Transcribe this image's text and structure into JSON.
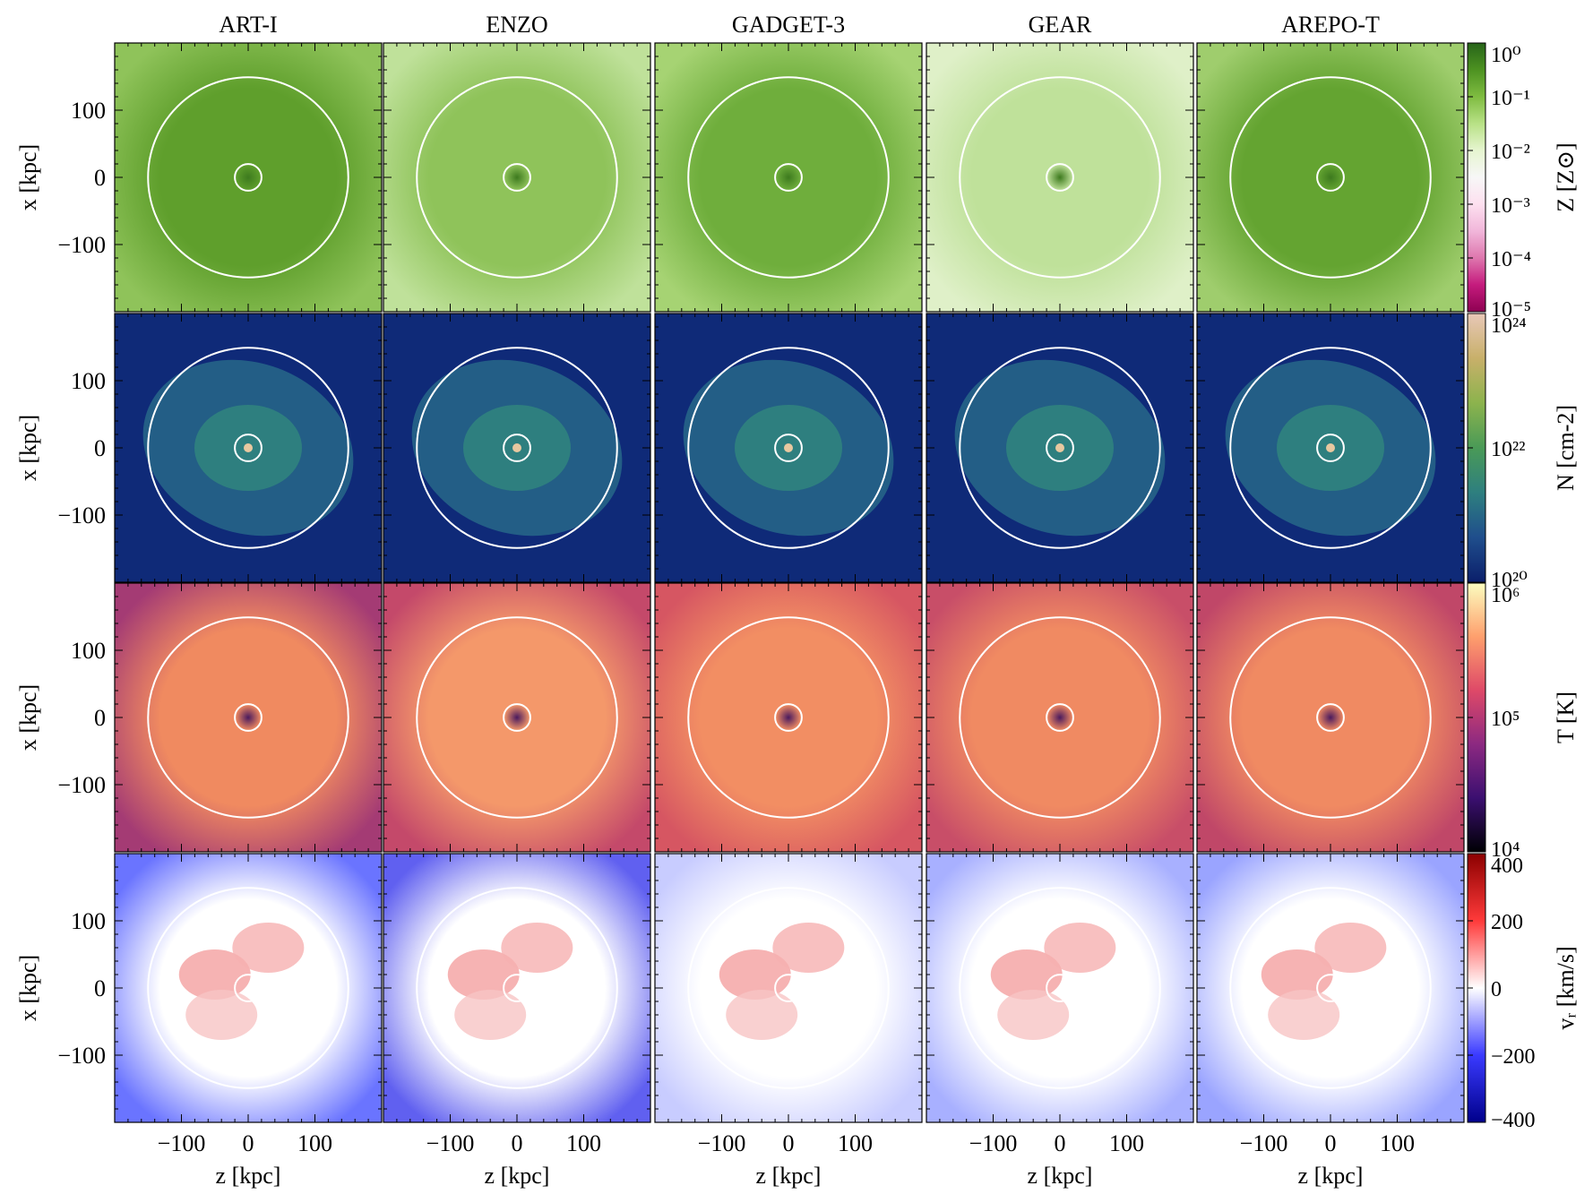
{
  "chart_data": {
    "type": "heatmap",
    "columns": [
      "ART-I",
      "ENZO",
      "GADGET-3",
      "GEAR",
      "AREPO-T"
    ],
    "xlabel": "z [kpc]",
    "ylabel": "x [kpc]",
    "xlim": [
      -200,
      200
    ],
    "ylim": [
      -200,
      200
    ],
    "xticks": [
      -100,
      0,
      100
    ],
    "yticks": [
      100,
      0,
      -100
    ],
    "xtick_labels": [
      "−100",
      "0",
      "100"
    ],
    "ytick_labels": [
      "100",
      "0",
      "−100"
    ],
    "circle_radii_kpc": [
      150,
      20
    ],
    "rows": [
      {
        "quantity": "metallicity",
        "colorbar_label": "Z [Z⊙]",
        "colorbar_scale": "log",
        "colorbar_ticks": [
          "10⁰",
          "10⁻¹",
          "10⁻²",
          "10⁻³",
          "10⁻⁴",
          "10⁻⁵"
        ],
        "colormap": [
          "#8e0152",
          "#c51b7d",
          "#de77ae",
          "#f1b6da",
          "#fde0ef",
          "#f7f7f7",
          "#e6f5d0",
          "#b8e186",
          "#7fbc41",
          "#4d9221",
          "#276419"
        ]
      },
      {
        "quantity": "column density",
        "colorbar_label": "N [cm-2]",
        "colorbar_scale": "log",
        "colorbar_ticks": [
          "10²⁴",
          "10²²",
          "10²⁰"
        ],
        "colormap": [
          "#0b1f6b",
          "#1f4e8c",
          "#2e7f7f",
          "#4a9a57",
          "#8cb34d",
          "#c8b06a",
          "#e8c8b8"
        ]
      },
      {
        "quantity": "temperature",
        "colorbar_label": "T [K]",
        "colorbar_scale": "log",
        "colorbar_ticks": [
          "10⁶",
          "10⁵",
          "10⁴"
        ],
        "colormap": [
          "#000004",
          "#3b0f70",
          "#8c2981",
          "#de4968",
          "#fe9f6d",
          "#fcfdbf"
        ]
      },
      {
        "quantity": "radial velocity",
        "colorbar_label": "vᵣ [km/s]",
        "colorbar_scale": "linear",
        "colorbar_ticks": [
          "400",
          "200",
          "0",
          "−200",
          "−400"
        ],
        "colormap": [
          "#00008b",
          "#3a3aff",
          "#ffffff",
          "#ff3a3a",
          "#8b0000"
        ]
      }
    ]
  }
}
